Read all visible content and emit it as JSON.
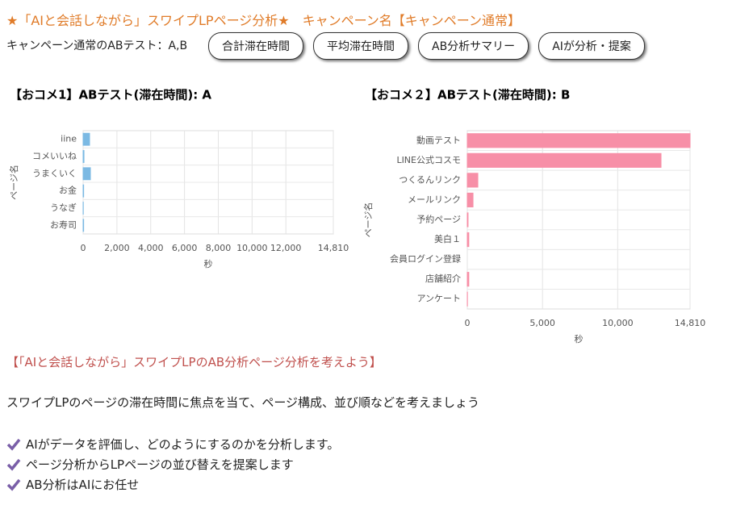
{
  "header": {
    "title": "★「AIと会話しながら」スワイプLPページ分析★　キャンペーン名【キャンペーン通常】",
    "subtitle": "キャンペーン通常のABテスト：A,B",
    "buttons": [
      "合計滞在時間",
      "平均滞在時間",
      "AB分析サマリー",
      "AIが分析・提案"
    ]
  },
  "chart_data": [
    {
      "type": "bar",
      "orientation": "horizontal",
      "title": "【おコメ1】ABテスト(滞在時間): A",
      "categories": [
        "iine",
        "コメいいね",
        "うまくいく",
        "お金",
        "うなぎ",
        "お寿司"
      ],
      "values": [
        380,
        50,
        430,
        30,
        10,
        30
      ],
      "color": "#7bb9e3",
      "xlim": [
        0,
        14810
      ],
      "xticks": [
        0,
        {
          "value": 2000,
          "label": "2,000"
        },
        {
          "value": 4000,
          "label": "4,000"
        },
        {
          "value": 6000,
          "label": "6,000"
        },
        {
          "value": 8000,
          "label": "8,000"
        },
        {
          "value": 10000,
          "label": "10,000"
        },
        {
          "value": 12000,
          "label": "12,000"
        },
        {
          "value": 14810,
          "label": "14,810"
        }
      ],
      "xlabel": "秒",
      "ylabel": "ページ名",
      "grid": true
    },
    {
      "type": "bar",
      "orientation": "horizontal",
      "title": "【おコメ２】ABテスト(滞在時間): B",
      "categories": [
        "動画テスト",
        "LINE公式コスモ",
        "つくるんリンク",
        "メールリンク",
        "予約ページ",
        "美白１",
        "会員ログイン登録",
        "店舗紹介",
        "アンケート"
      ],
      "values": [
        14810,
        12880,
        700,
        380,
        50,
        100,
        0,
        100,
        10
      ],
      "color": "#f78fa7",
      "xlim": [
        0,
        14810
      ],
      "xticks": [
        0,
        {
          "value": 5000,
          "label": "5,000"
        },
        {
          "value": 10000,
          "label": "10,000"
        },
        {
          "value": 14810,
          "label": "14,810"
        }
      ],
      "xlabel": "秒",
      "ylabel": "ページ名",
      "grid": true
    }
  ],
  "section": {
    "heading": "【「AIと会話しながら」スワイプLPのAB分析ページ分析を考えよう】",
    "paragraph": "スワイプLPのページの滞在時間に焦点を当て、ページ構成、並び順などを考えましょう",
    "checklist": [
      "AIがデータを評価し、どのようにするのかを分析します。",
      "ページ分析からLPページの並び替えを提案します",
      "AB分析はAIにお任せ"
    ]
  }
}
